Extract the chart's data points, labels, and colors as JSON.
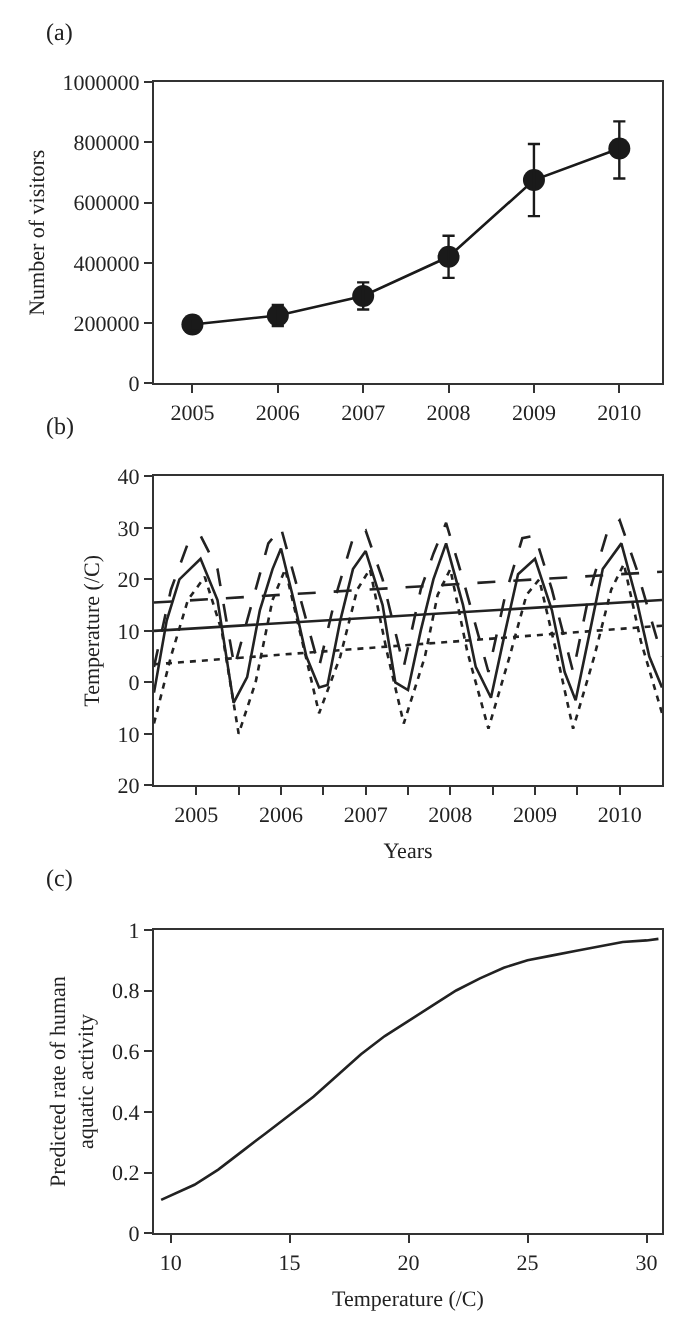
{
  "chart_data": [
    {
      "type": "line",
      "title": "(a)",
      "ylabel": "Number of visitors",
      "marker": "circle",
      "line_style": "solid",
      "color": "#1a1a1a",
      "x": [
        2005,
        2006,
        2007,
        2008,
        2009,
        2010
      ],
      "values": [
        195000,
        225000,
        290000,
        420000,
        675000,
        780000
      ],
      "errors": [
        [
          175000,
          215000
        ],
        [
          190000,
          260000
        ],
        [
          245000,
          335000
        ],
        [
          350000,
          490000
        ],
        [
          555000,
          795000
        ],
        [
          680000,
          870000
        ]
      ],
      "xlim": [
        2004.55,
        2010.5
      ],
      "xticks": [
        2005,
        2006,
        2007,
        2008,
        2009,
        2010
      ],
      "ylim": [
        0,
        1000000
      ],
      "yticks": [
        0,
        200000,
        400000,
        600000,
        800000,
        1000000
      ]
    },
    {
      "type": "line",
      "title": "(b)",
      "xlabel": "Years",
      "ylabel": "Temperature (/C)",
      "marker": "none",
      "series": [
        {
          "color": "#222222",
          "line_style": "solid",
          "x": [
            2005.0,
            2005.15,
            2005.3,
            2005.55,
            2005.75,
            2005.94,
            2006.1,
            2006.25,
            2006.4,
            2006.5,
            2006.65,
            2006.8,
            2006.95,
            2007.05,
            2007.2,
            2007.35,
            2007.5,
            2007.7,
            2007.85,
            2008.0,
            2008.15,
            2008.3,
            2008.45,
            2008.65,
            2008.8,
            2008.98,
            2009.15,
            2009.3,
            2009.5,
            2009.7,
            2009.85,
            2009.98,
            2010.15,
            2010.3,
            2010.52,
            2010.7,
            2010.85,
            2011.0
          ],
          "values": [
            -2,
            12,
            20,
            24,
            16,
            -4,
            1,
            14,
            22,
            26,
            16,
            5,
            -1,
            -0.5,
            12,
            22,
            25.5,
            15,
            0,
            -1.5,
            10,
            20,
            27,
            15,
            3,
            -3,
            10,
            21,
            24,
            14,
            2,
            -3.5,
            10,
            22,
            27,
            16,
            5,
            -1
          ]
        },
        {
          "color": "#222222",
          "line_style": "dashed",
          "x": [
            2005.0,
            2005.2,
            2005.4,
            2005.55,
            2005.75,
            2005.95,
            2006.15,
            2006.35,
            2006.5,
            2006.7,
            2006.95,
            2007.15,
            2007.35,
            2007.5,
            2007.7,
            2007.95,
            2008.15,
            2008.3,
            2008.45,
            2008.65,
            2008.95,
            2009.15,
            2009.35,
            2009.5,
            2009.7,
            2009.95,
            2010.15,
            2010.35,
            2010.5,
            2010.7,
            2011.0
          ],
          "values": [
            3,
            18,
            27,
            28.5,
            22,
            3,
            15,
            27,
            30,
            18,
            3,
            17,
            28,
            29.5,
            20,
            3,
            18,
            25,
            31,
            20,
            2,
            17,
            28,
            28.5,
            18,
            2,
            18,
            29,
            31.5,
            22,
            5
          ]
        },
        {
          "color": "#222222",
          "line_style": "dotted",
          "x": [
            2005.0,
            2005.2,
            2005.4,
            2005.6,
            2005.8,
            2006.0,
            2006.2,
            2006.4,
            2006.55,
            2006.75,
            2006.95,
            2007.2,
            2007.4,
            2007.55,
            2007.75,
            2007.95,
            2008.2,
            2008.35,
            2008.5,
            2008.7,
            2008.95,
            2009.2,
            2009.4,
            2009.55,
            2009.75,
            2009.95,
            2010.2,
            2010.4,
            2010.55,
            2010.75,
            2011.0
          ],
          "values": [
            -8,
            5,
            16,
            20.5,
            10,
            -10,
            0,
            16,
            22,
            8,
            -6,
            5,
            18,
            22,
            6,
            -8,
            5,
            17,
            22,
            6,
            -9,
            5,
            17,
            20,
            6,
            -9,
            5,
            18,
            23,
            8,
            -6
          ]
        },
        {
          "color": "#222222",
          "line_style": "solid",
          "x": [
            2005.0,
            2011.0
          ],
          "values": [
            10,
            16
          ]
        },
        {
          "color": "#222222",
          "line_style": "dashed",
          "x": [
            2005.0,
            2011.0
          ],
          "values": [
            15.5,
            21.5
          ]
        },
        {
          "color": "#222222",
          "line_style": "dotted",
          "x": [
            2005.0,
            2011.0
          ],
          "values": [
            3.5,
            11
          ]
        }
      ],
      "xlim": [
        2005,
        2011
      ],
      "xticks": [
        {
          "value": 2005.5,
          "label": "2005"
        },
        {
          "value": 2006,
          "label": null
        },
        {
          "value": 2006.5,
          "label": "2006"
        },
        {
          "value": 2007,
          "label": null
        },
        {
          "value": 2007.5,
          "label": "2007"
        },
        {
          "value": 2008,
          "label": null
        },
        {
          "value": 2008.5,
          "label": "2008"
        },
        {
          "value": 2009,
          "label": null
        },
        {
          "value": 2009.5,
          "label": "2009"
        },
        {
          "value": 2010,
          "label": null
        },
        {
          "value": 2010.5,
          "label": "2010"
        }
      ],
      "ylim": [
        -20,
        40
      ],
      "yticks": [
        {
          "value": -20,
          "label": "20"
        },
        {
          "value": -10,
          "label": "10"
        },
        0,
        10,
        20,
        30,
        40
      ]
    },
    {
      "type": "line",
      "title": "(c)",
      "xlabel": "Temperature (/C)",
      "ylabel": "Predicted rate of human\naquatic activity",
      "marker": "none",
      "line_style": "solid",
      "color": "#222222",
      "x": [
        9.6,
        11,
        12,
        13,
        14,
        15,
        16,
        17,
        18,
        19,
        20,
        21,
        22,
        23,
        24,
        25,
        26,
        27,
        28,
        29,
        30,
        30.5
      ],
      "values": [
        0.11,
        0.16,
        0.21,
        0.27,
        0.33,
        0.39,
        0.45,
        0.52,
        0.59,
        0.65,
        0.7,
        0.75,
        0.8,
        0.84,
        0.875,
        0.9,
        0.915,
        0.93,
        0.945,
        0.96,
        0.965,
        0.97
      ],
      "xlim": [
        9.3,
        30.65
      ],
      "xticks": [
        10,
        15,
        20,
        25,
        30
      ],
      "ylim": [
        0,
        1
      ],
      "yticks": [
        0,
        0.2,
        0.4,
        0.6,
        0.8,
        1
      ]
    }
  ]
}
